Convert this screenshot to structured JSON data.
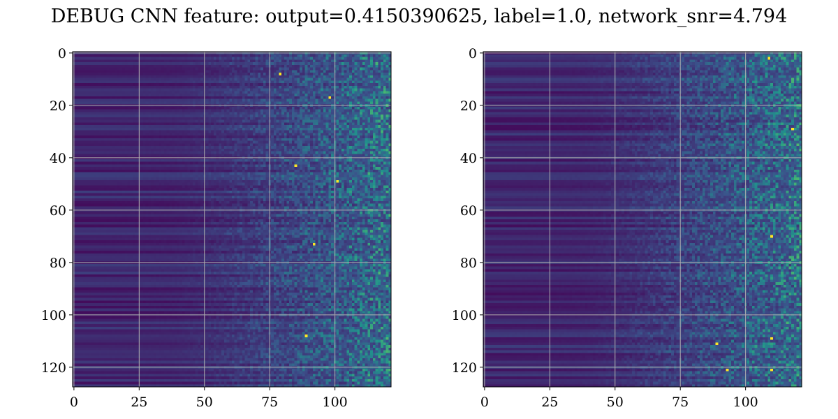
{
  "suptitle": "DEBUG CNN feature: output=0.4150390625, label=1.0, network_snr=4.794",
  "colormap": [
    "#440154",
    "#3b528b",
    "#21918c",
    "#5ec962",
    "#fde725"
  ],
  "chart_data": [
    {
      "type": "heatmap",
      "title": "",
      "xlabel": "",
      "ylabel": "",
      "n_cols": 122,
      "n_rows": 128,
      "xlim": [
        -0.5,
        121.5
      ],
      "ylim": [
        127.5,
        -0.5
      ],
      "xticks": [
        0,
        25,
        50,
        75,
        100
      ],
      "yticks": [
        0,
        20,
        40,
        60,
        80,
        100,
        120
      ],
      "grid": true,
      "colormap": "viridis",
      "value_range": [
        0,
        1
      ],
      "structure": "low, smooth horizontal bands for columns 0-40; values and noise increase toward the right (columns 70-121); isolated peaks",
      "peaks": [
        [
          101,
          49
        ],
        [
          92,
          73
        ],
        [
          85,
          43
        ],
        [
          79,
          8
        ],
        [
          89,
          108
        ],
        [
          98,
          17
        ]
      ]
    },
    {
      "type": "heatmap",
      "title": "",
      "xlabel": "",
      "ylabel": "",
      "n_cols": 122,
      "n_rows": 128,
      "xlim": [
        -0.5,
        121.5
      ],
      "ylim": [
        127.5,
        -0.5
      ],
      "xticks": [
        0,
        25,
        50,
        75,
        100
      ],
      "yticks": [
        0,
        20,
        40,
        60,
        80,
        100,
        120
      ],
      "grid": true,
      "colormap": "viridis",
      "value_range": [
        0,
        1
      ],
      "structure": "low, smooth horizontal bands for columns 0-40; values and noise increase toward the right (columns 70-121); isolated peaks",
      "peaks": [
        [
          110,
          70
        ],
        [
          110,
          121
        ],
        [
          93,
          121
        ],
        [
          118,
          29
        ],
        [
          110,
          109
        ],
        [
          89,
          111
        ],
        [
          109,
          2
        ]
      ]
    }
  ]
}
